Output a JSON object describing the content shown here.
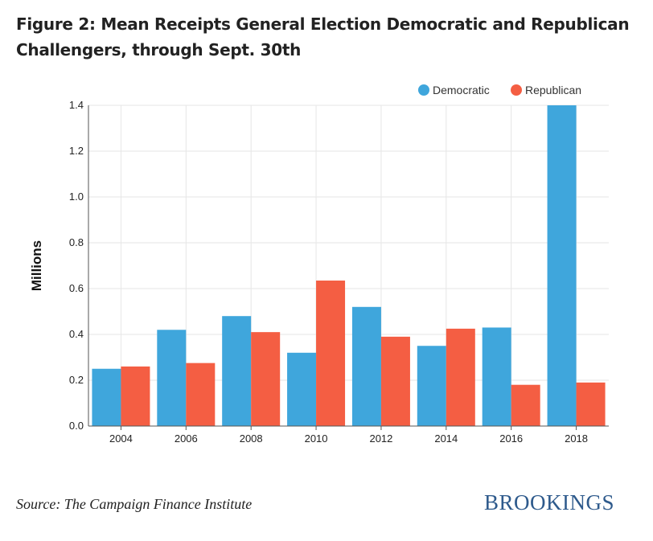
{
  "title": "Figure 2: Mean Receipts General Election Democratic and Republican Challengers, through Sept. 30th",
  "source": "Source: The Campaign Finance Institute",
  "logo": "BROOKINGS",
  "colors": {
    "democratic": "#3fa6dc",
    "republican": "#f45e43",
    "grid": "#e6e6e6",
    "axis": "#555555",
    "text": "#222222"
  },
  "chart_data": {
    "type": "bar",
    "categories": [
      "2004",
      "2006",
      "2008",
      "2010",
      "2012",
      "2014",
      "2016",
      "2018"
    ],
    "series": [
      {
        "name": "Democratic",
        "values": [
          0.25,
          0.42,
          0.48,
          0.32,
          0.52,
          0.35,
          0.43,
          1.4
        ]
      },
      {
        "name": "Republican",
        "values": [
          0.26,
          0.275,
          0.41,
          0.635,
          0.39,
          0.425,
          0.18,
          0.19
        ]
      }
    ],
    "xlabel": "",
    "ylabel": "Millions",
    "ylim": [
      0,
      1.4
    ],
    "yticks": [
      "0.0",
      "0.2",
      "0.4",
      "0.6",
      "0.8",
      "1.0",
      "1.2",
      "1.4"
    ],
    "grid": true,
    "legend_position": "top-right"
  }
}
